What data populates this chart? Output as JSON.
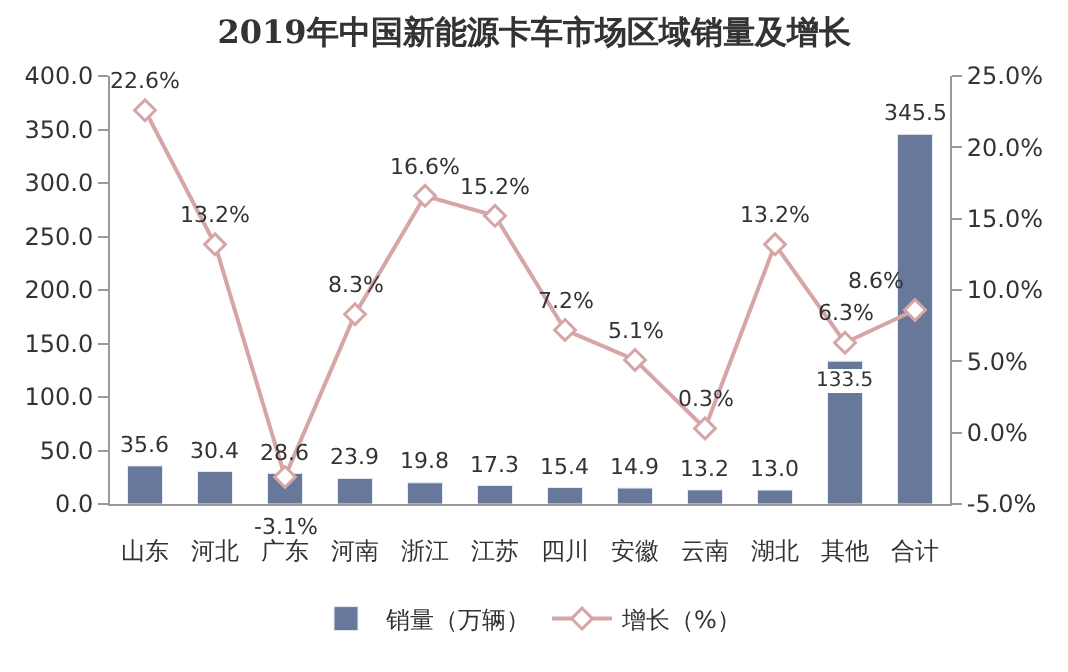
{
  "chart_data": {
    "type": "bar",
    "title": "2019年中国新能源卡车市场区域销量及增长",
    "categories": [
      "山东",
      "河北",
      "广东",
      "河南",
      "浙江",
      "江苏",
      "四川",
      "安徽",
      "云南",
      "湖北",
      "其他",
      "合计"
    ],
    "series": [
      {
        "name": "销量（万辆）",
        "color": "#68789b",
        "values": [
          35.6,
          30.4,
          28.6,
          23.9,
          19.8,
          17.3,
          15.4,
          14.9,
          13.2,
          13.0,
          133.5,
          345.5
        ],
        "value_labels": [
          "35.6",
          "30.4",
          "28.6",
          "23.9",
          "19.8",
          "17.3",
          "15.4",
          "14.9",
          "13.2",
          "13.0",
          "133.5",
          "345.5"
        ]
      },
      {
        "name": "增长（%）",
        "type": "line",
        "axis": "y2",
        "color": "#d6a6a6",
        "marker": "diamond",
        "values": [
          22.6,
          13.2,
          -3.1,
          8.3,
          16.6,
          15.2,
          7.2,
          5.1,
          0.3,
          13.2,
          6.3,
          8.6
        ],
        "value_labels": [
          "22.6%",
          "13.2%",
          "-3.1%",
          "8.3%",
          "16.6%",
          "15.2%",
          "7.2%",
          "5.1%",
          "0.3%",
          "13.2%",
          "6.3%",
          "8.6%"
        ]
      }
    ],
    "ylim": [
      0,
      400
    ],
    "yticks": [
      {
        "value": 0,
        "label": "0.0"
      },
      {
        "value": 50,
        "label": "50.0"
      },
      {
        "value": 100,
        "label": "100.0"
      },
      {
        "value": 150,
        "label": "150.0"
      },
      {
        "value": 200,
        "label": "200.0"
      },
      {
        "value": 250,
        "label": "250.0"
      },
      {
        "value": 300,
        "label": "300.0"
      },
      {
        "value": 350,
        "label": "350.0"
      },
      {
        "value": 400,
        "label": "400.0"
      }
    ],
    "y2lim": [
      -5,
      25
    ],
    "y2ticks": [
      {
        "value": -5,
        "label": "-5.0%"
      },
      {
        "value": 0,
        "label": "0.0%"
      },
      {
        "value": 5,
        "label": "5.0%"
      },
      {
        "value": 10,
        "label": "10.0%"
      },
      {
        "value": 15,
        "label": "15.0%"
      },
      {
        "value": 20,
        "label": "20.0%"
      },
      {
        "value": 25,
        "label": "25.0%"
      }
    ],
    "legend": "bottom"
  }
}
